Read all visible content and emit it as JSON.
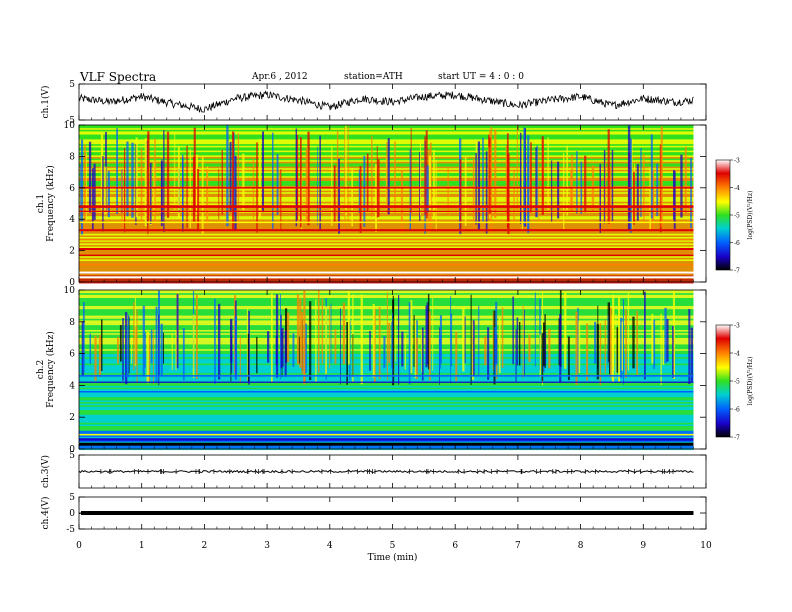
{
  "header": {
    "title": "VLF  Spectra",
    "date": "Apr.6  , 2012",
    "station": "station=ATH",
    "start_ut": "start  UT  =   4  : 0  : 0"
  },
  "colors": {
    "spectrogram_cmap": [
      "#000000",
      "#1a00c8",
      "#0060ff",
      "#00d0d0",
      "#30e020",
      "#ffff00",
      "#ff8000",
      "#e00000",
      "#ffffff"
    ],
    "trace": "#000000",
    "background": "#ffffff"
  },
  "chart_data": [
    {
      "type": "line",
      "ylabel": "ch.1(V)",
      "ylim": [
        -5,
        5
      ],
      "yticks": [
        "5",
        "-5"
      ],
      "x": [
        0,
        0.5,
        1,
        1.5,
        2,
        2.5,
        3,
        3.5,
        4,
        4.5,
        5,
        5.5,
        6,
        6.5,
        7,
        7.5,
        8,
        8.5,
        9,
        9.5,
        9.8
      ],
      "y": [
        1,
        0,
        1.5,
        -0.5,
        -2,
        1,
        2,
        0.5,
        -1.5,
        1,
        0,
        1.5,
        2,
        0.5,
        -1,
        0.5,
        1.5,
        -1,
        1,
        0,
        0.5
      ],
      "xlim": [
        0,
        10
      ]
    },
    {
      "type": "heatmap",
      "ylabel": "ch.1\nFrequency  (kHz)",
      "ylim": [
        0,
        10
      ],
      "yticks": [
        "0",
        "2",
        "4",
        "6",
        "8",
        "10"
      ],
      "xlim": [
        0,
        10
      ],
      "data_end_min": 9.8,
      "colorbar": {
        "label": "log(PSD)(V²/Hz)",
        "range": [
          -7,
          -3
        ],
        "ticks": [
          "-7",
          "-6",
          "-5",
          "-4",
          "-3"
        ]
      }
    },
    {
      "type": "heatmap",
      "ylabel": "ch.2\nFrequency  (kHz)",
      "ylim": [
        0,
        10
      ],
      "yticks": [
        "0",
        "2",
        "4",
        "6",
        "8",
        "10"
      ],
      "xlim": [
        0,
        10
      ],
      "data_end_min": 9.8,
      "colorbar": {
        "label": "log(PSD)(V²/Hz)",
        "range": [
          -7,
          -3
        ],
        "ticks": [
          "-7",
          "-6",
          "-5",
          "-4",
          "-3"
        ]
      }
    },
    {
      "type": "line",
      "ylabel": "ch.3(V)",
      "ylim": [
        -5,
        5
      ],
      "yticks": [
        "5"
      ],
      "x": [
        0,
        9.8
      ],
      "y": [
        0,
        0
      ],
      "xlim": [
        0,
        10
      ]
    },
    {
      "type": "line",
      "ylabel": "ch.4(V)",
      "ylim": [
        -5,
        5
      ],
      "yticks": [
        "5",
        "0",
        "-5"
      ],
      "x": [
        0,
        9.8
      ],
      "y": [
        0,
        0
      ],
      "xlim": [
        0,
        10
      ],
      "xlabel": "Time  (min)",
      "xticks": [
        "0",
        "1",
        "2",
        "3",
        "4",
        "5",
        "6",
        "7",
        "8",
        "9",
        "10"
      ]
    }
  ]
}
